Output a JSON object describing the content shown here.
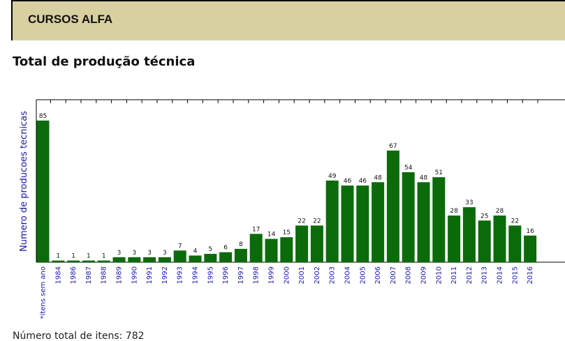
{
  "header": {
    "title": "CURSOS ALFA"
  },
  "section_title": "Total de produção técnica",
  "chart_data": {
    "type": "bar",
    "ylabel": "Numero de producoes tecnicas",
    "categories": [
      "*itens sem ano",
      "1984",
      "1986",
      "1987",
      "1988",
      "1989",
      "1990",
      "1991",
      "1992",
      "1993",
      "1994",
      "1995",
      "1996",
      "1997",
      "1998",
      "1999",
      "2000",
      "2001",
      "2002",
      "2003",
      "2004",
      "2005",
      "2006",
      "2007",
      "2008",
      "2009",
      "2010",
      "2011",
      "2012",
      "2013",
      "2014",
      "2015",
      "2016"
    ],
    "values": [
      85,
      1,
      1,
      1,
      1,
      3,
      3,
      3,
      3,
      7,
      4,
      5,
      6,
      8,
      17,
      14,
      15,
      22,
      22,
      49,
      46,
      46,
      48,
      67,
      54,
      48,
      51,
      28,
      33,
      25,
      28,
      22,
      16
    ],
    "color": "#0b6b0b",
    "ylim": [
      0,
      97.5
    ]
  },
  "footer": "Número total de itens: 782"
}
